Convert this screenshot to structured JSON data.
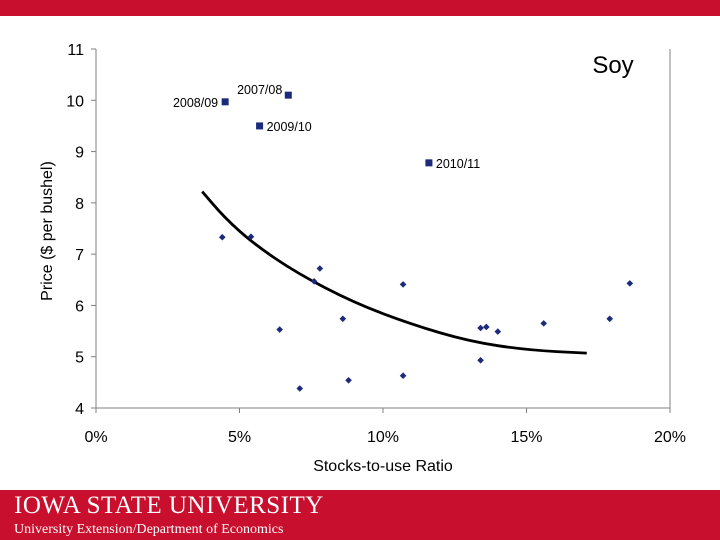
{
  "header": {
    "accent": "#c8102e"
  },
  "chart_data": {
    "type": "scatter",
    "title": "Soy",
    "xlabel": "Stocks-to-use Ratio",
    "ylabel": "Price ($ per bushel)",
    "xlim": [
      0,
      20
    ],
    "ylim": [
      4,
      11
    ],
    "x_ticks": [
      0,
      5,
      10,
      15,
      20
    ],
    "x_tick_labels": [
      "0%",
      "5%",
      "10%",
      "15%",
      "20%"
    ],
    "y_ticks": [
      4,
      5,
      6,
      7,
      8,
      9,
      10,
      11
    ],
    "y_tick_labels": [
      "4",
      "5",
      "6",
      "7",
      "8",
      "9",
      "10",
      "11"
    ],
    "grid": false,
    "historical_points": [
      {
        "x": 4.4,
        "y": 7.33
      },
      {
        "x": 5.4,
        "y": 7.34
      },
      {
        "x": 6.4,
        "y": 5.53
      },
      {
        "x": 7.1,
        "y": 4.38
      },
      {
        "x": 7.6,
        "y": 6.47
      },
      {
        "x": 7.8,
        "y": 6.72
      },
      {
        "x": 8.6,
        "y": 5.74
      },
      {
        "x": 8.8,
        "y": 4.54
      },
      {
        "x": 10.7,
        "y": 6.41
      },
      {
        "x": 10.7,
        "y": 4.63
      },
      {
        "x": 13.4,
        "y": 5.56
      },
      {
        "x": 13.4,
        "y": 4.93
      },
      {
        "x": 13.6,
        "y": 5.58
      },
      {
        "x": 14.0,
        "y": 5.49
      },
      {
        "x": 15.6,
        "y": 5.65
      },
      {
        "x": 17.9,
        "y": 5.74
      },
      {
        "x": 18.6,
        "y": 6.43
      }
    ],
    "labeled_points": [
      {
        "label": "2008/09",
        "x": 4.5,
        "y": 9.97,
        "label_side": "left"
      },
      {
        "label": "2007/08",
        "x": 6.7,
        "y": 10.1,
        "label_side": "upper-left"
      },
      {
        "label": "2009/10",
        "x": 5.7,
        "y": 9.5,
        "label_side": "right"
      },
      {
        "label": "2010/11",
        "x": 11.6,
        "y": 8.78,
        "label_side": "right"
      }
    ],
    "trend_curve": [
      {
        "x": 3.7,
        "y": 8.22
      },
      {
        "x": 4.5,
        "y": 7.7
      },
      {
        "x": 5.5,
        "y": 7.2
      },
      {
        "x": 7.0,
        "y": 6.63
      },
      {
        "x": 9.0,
        "y": 6.05
      },
      {
        "x": 11.0,
        "y": 5.63
      },
      {
        "x": 13.0,
        "y": 5.3
      },
      {
        "x": 15.0,
        "y": 5.13
      },
      {
        "x": 17.1,
        "y": 5.07
      }
    ],
    "colors": {
      "point": "#1c2a7a",
      "curve": "#000000",
      "axis": "#808080",
      "text": "#000000"
    }
  },
  "footer": {
    "logo_text": "IOWA STATE UNIVERSITY",
    "department": "University Extension/Department of Economics",
    "background": "#c8102e",
    "text_color": "#ffffff"
  }
}
